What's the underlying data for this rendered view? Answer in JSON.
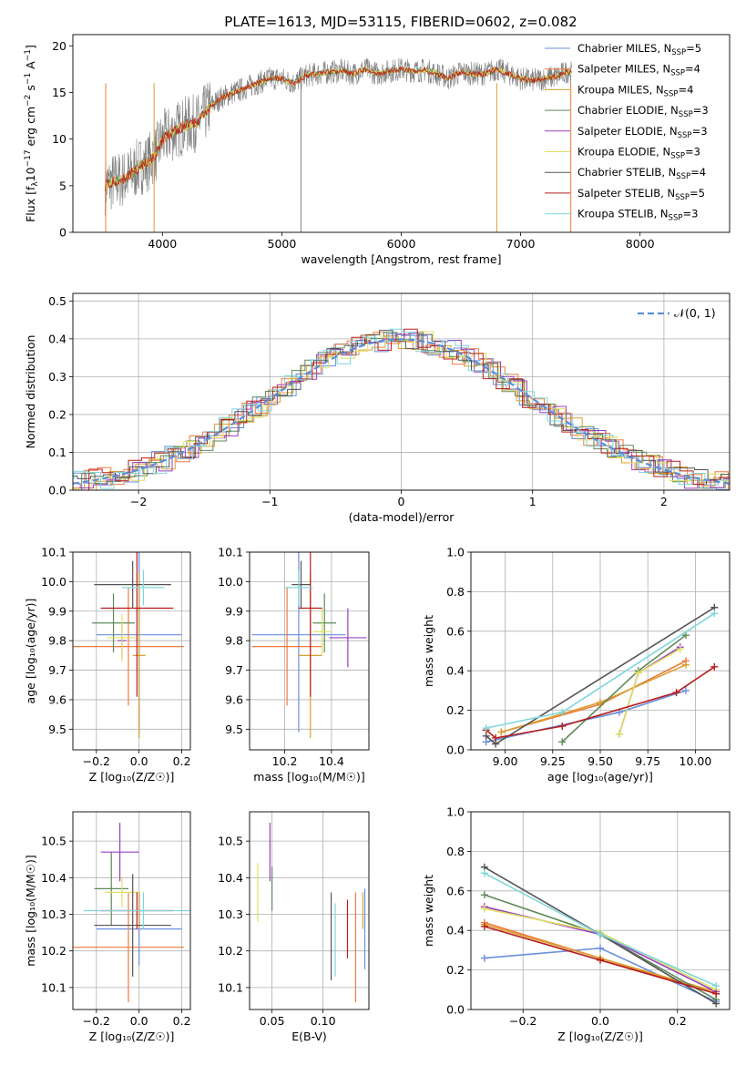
{
  "title": "PLATE=1613, MJD=53115, FIBERID=0602, z=0.082",
  "colors": {
    "chabrier_miles": "#6a8fdc",
    "salpeter_miles": "#f07a3c",
    "kroupa_miles": "#d8a030",
    "chabrier_elodie": "#5e8a5a",
    "salpeter_elodie": "#9a3fc0",
    "kroupa_elodie": "#e0e060",
    "chabrier_stelib": "#555555",
    "salpeter_stelib": "#b81c1c",
    "kroupa_stelib": "#7fd6dc",
    "data": "#808080",
    "normal": "#5a8fd8",
    "grid": "#b0b0b0"
  },
  "chart_data": [
    {
      "type": "line",
      "panel": "spectrum",
      "xlabel": "wavelength [Angstrom, rest frame]",
      "ylabel_main": "Flux [f",
      "ylabel_sub": "λ",
      "ylabel_rest": "10",
      "ylabel_exp": "−17",
      "ylabel_units": " erg cm",
      "ylabel_exp2": "−2",
      "ylabel_s": " s",
      "ylabel_exp3": "−1",
      "ylabel_A": " A",
      "ylabel_exp4": "−1",
      "ylabel_close": "]",
      "xlim": [
        3250,
        8750
      ],
      "ylim": [
        0,
        21.2
      ],
      "xticks": [
        "4000",
        "5000",
        "6000",
        "7000",
        "8000"
      ],
      "xtick_values": [
        4000,
        5000,
        6000,
        7000,
        8000
      ],
      "yticks": [
        "0",
        "5",
        "10",
        "15",
        "20"
      ],
      "ytick_values": [
        0,
        5,
        10,
        15,
        20
      ],
      "spectrum_x": [
        3520,
        3600,
        3700,
        3800,
        3880,
        3950,
        4000,
        4100,
        4200,
        4300,
        4400,
        4500,
        4600,
        4700,
        4800,
        4900,
        5000,
        5100,
        5200,
        5300,
        5400,
        5500,
        5600,
        5700,
        5800,
        5900,
        6000,
        6100,
        6200,
        6300,
        6400,
        6500,
        6600,
        6700,
        6800,
        6900,
        7000,
        7100,
        7200,
        7300,
        7400,
        7500
      ],
      "spectrum_y": [
        5.0,
        5.5,
        5.8,
        7.0,
        7.5,
        8.5,
        10.0,
        10.8,
        11.5,
        11.8,
        13.5,
        14.5,
        15.0,
        15.5,
        16.0,
        16.5,
        16.5,
        16.0,
        16.8,
        17.0,
        17.2,
        17.3,
        17.0,
        17.5,
        17.0,
        17.3,
        17.5,
        17.3,
        17.4,
        17.0,
        16.5,
        17.2,
        17.0,
        17.0,
        17.5,
        17.0,
        16.5,
        16.3,
        16.5,
        16.7,
        17.3,
        16.5
      ],
      "legend_location": "upper right",
      "legend": [
        {
          "key": "chabrier_miles",
          "label": "Chabrier MILES, N",
          "sub": "SSP",
          "value": "=5"
        },
        {
          "key": "salpeter_miles",
          "label": "Salpeter MILES, N",
          "sub": "SSP",
          "value": "=4"
        },
        {
          "key": "kroupa_miles",
          "label": "Kroupa MILES, N",
          "sub": "SSP",
          "value": "=4"
        },
        {
          "key": "chabrier_elodie",
          "label": "Chabrier ELODIE, N",
          "sub": "SSP",
          "value": "=3"
        },
        {
          "key": "salpeter_elodie",
          "label": "Salpeter ELODIE, N",
          "sub": "SSP",
          "value": "=3"
        },
        {
          "key": "kroupa_elodie",
          "label": "Kroupa ELODIE, N",
          "sub": "SSP",
          "value": "=3"
        },
        {
          "key": "chabrier_stelib",
          "label": "Chabrier STELIB, N",
          "sub": "SSP",
          "value": "=4"
        },
        {
          "key": "salpeter_stelib",
          "label": "Salpeter STELIB, N",
          "sub": "SSP",
          "value": "=5"
        },
        {
          "key": "kroupa_stelib",
          "label": "Kroupa STELIB, N",
          "sub": "SSP",
          "value": "=3"
        }
      ]
    },
    {
      "type": "line",
      "panel": "residuals",
      "xlabel": "(data-model)/error",
      "ylabel": "Normed distribution",
      "xlim": [
        -2.5,
        2.5
      ],
      "ylim": [
        0,
        0.52
      ],
      "xticks": [
        "−2",
        "−1",
        "0",
        "1",
        "2"
      ],
      "xtick_values": [
        -2,
        -1,
        0,
        1,
        2
      ],
      "yticks": [
        "0.0",
        "0.1",
        "0.2",
        "0.3",
        "0.4",
        "0.5"
      ],
      "ytick_values": [
        0,
        0.1,
        0.2,
        0.3,
        0.4,
        0.5
      ],
      "normal_label": "𝒩(0, 1)",
      "legend_location": "upper right"
    },
    {
      "type": "scatter",
      "panel": "age_vs_Z",
      "xlabel": "Z [log₁₀(Z/Z☉)]",
      "ylabel": "age  [log₁₀(age/yr)]",
      "xlim": [
        -0.31,
        0.24
      ],
      "ylim": [
        9.43,
        10.1
      ],
      "xticks": [
        "−0.2",
        "0.0",
        "0.2"
      ],
      "xtick_values": [
        -0.2,
        0.0,
        0.2
      ],
      "yticks": [
        "9.5",
        "9.6",
        "9.7",
        "9.8",
        "9.9",
        "10.0",
        "10.1"
      ],
      "ytick_values": [
        9.5,
        9.6,
        9.7,
        9.8,
        9.9,
        10.0,
        10.1
      ],
      "points": [
        {
          "key": "chabrier_miles",
          "x": 0.0,
          "xerr": 0.2,
          "y": 9.82,
          "yerr": 0.33
        },
        {
          "key": "salpeter_miles",
          "x": -0.05,
          "xerr": 0.26,
          "y": 9.78,
          "yerr": 0.2
        },
        {
          "key": "kroupa_miles",
          "x": 0.0,
          "xerr": 0.03,
          "y": 9.75,
          "yerr": 0.28
        },
        {
          "key": "chabrier_elodie",
          "x": -0.12,
          "xerr": 0.1,
          "y": 9.86,
          "yerr": 0.1
        },
        {
          "key": "salpeter_elodie",
          "x": -0.08,
          "xerr": 0.02,
          "y": 9.8,
          "yerr": 0.06
        },
        {
          "key": "kroupa_elodie",
          "x": -0.08,
          "xerr": 0.07,
          "y": 9.81,
          "yerr": 0.08
        },
        {
          "key": "chabrier_stelib",
          "x": -0.03,
          "xerr": 0.18,
          "y": 9.99,
          "yerr": 0.08
        },
        {
          "key": "salpeter_stelib",
          "x": -0.01,
          "xerr": 0.17,
          "y": 9.91,
          "yerr": 0.3
        },
        {
          "key": "kroupa_stelib",
          "x": 0.02,
          "xerr": 0.1,
          "y": 9.98,
          "yerr": 0.06
        }
      ]
    },
    {
      "type": "scatter",
      "panel": "age_vs_mass",
      "xlabel": "mass [log₁₀(M/M☉)]",
      "ylabel": "",
      "xlim": [
        10.05,
        10.56
      ],
      "ylim": [
        9.43,
        10.1
      ],
      "xticks": [
        "10.2",
        "10.4"
      ],
      "xtick_values": [
        10.2,
        10.4
      ],
      "yticks": [
        "9.5",
        "9.6",
        "9.7",
        "9.8",
        "9.9",
        "10.0",
        "10.1"
      ],
      "ytick_values": [
        9.5,
        9.6,
        9.7,
        9.8,
        9.9,
        10.0,
        10.1
      ],
      "points": [
        {
          "key": "chabrier_miles",
          "x": 10.26,
          "xerr": 0.2,
          "y": 9.82,
          "yerr": 0.33
        },
        {
          "key": "salpeter_miles",
          "x": 10.21,
          "xerr": 0.15,
          "y": 9.78,
          "yerr": 0.2
        },
        {
          "key": "kroupa_miles",
          "x": 10.31,
          "xerr": 0.05,
          "y": 9.75,
          "yerr": 0.28
        },
        {
          "key": "chabrier_elodie",
          "x": 10.37,
          "xerr": 0.05,
          "y": 9.86,
          "yerr": 0.1
        },
        {
          "key": "salpeter_elodie",
          "x": 10.47,
          "xerr": 0.08,
          "y": 9.81,
          "yerr": 0.1
        },
        {
          "key": "kroupa_elodie",
          "x": 10.36,
          "xerr": 0.04,
          "y": 9.83,
          "yerr": 0.08
        },
        {
          "key": "chabrier_stelib",
          "x": 10.27,
          "xerr": 0.04,
          "y": 9.99,
          "yerr": 0.08
        },
        {
          "key": "salpeter_stelib",
          "x": 10.31,
          "xerr": 0.05,
          "y": 9.91,
          "yerr": 0.3
        },
        {
          "key": "kroupa_stelib",
          "x": 10.26,
          "xerr": 0.06,
          "y": 9.98,
          "yerr": 0.06
        }
      ]
    },
    {
      "type": "line",
      "panel": "mass_weight_vs_age",
      "xlabel": "age  [log₁₀(age/yr)]",
      "ylabel": "mass weight",
      "xlim": [
        8.82,
        10.18
      ],
      "ylim": [
        0,
        1.0
      ],
      "xticks": [
        "9.00",
        "9.25",
        "9.50",
        "9.75",
        "10.00"
      ],
      "xtick_values": [
        9.0,
        9.25,
        9.5,
        9.75,
        10.0
      ],
      "yticks": [
        "0.0",
        "0.2",
        "0.4",
        "0.6",
        "0.8",
        "1.0"
      ],
      "ytick_values": [
        0,
        0.2,
        0.4,
        0.6,
        0.8,
        1.0
      ],
      "series": [
        {
          "key": "chabrier_miles",
          "x": [
            8.9,
            9.6,
            9.95
          ],
          "y": [
            0.04,
            0.19,
            0.3
          ]
        },
        {
          "key": "salpeter_miles",
          "x": [
            8.98,
            9.5,
            9.95
          ],
          "y": [
            0.09,
            0.23,
            0.45
          ]
        },
        {
          "key": "kroupa_miles",
          "x": [
            8.98,
            9.5,
            9.95
          ],
          "y": [
            0.09,
            0.24,
            0.43
          ]
        },
        {
          "key": "chabrier_elodie",
          "x": [
            9.3,
            9.7,
            9.95
          ],
          "y": [
            0.04,
            0.4,
            0.58
          ]
        },
        {
          "key": "salpeter_elodie",
          "x": [
            9.6,
            9.7,
            9.92
          ],
          "y": [
            0.08,
            0.39,
            0.52
          ]
        },
        {
          "key": "kroupa_elodie",
          "x": [
            9.6,
            9.7,
            9.92
          ],
          "y": [
            0.08,
            0.39,
            0.51
          ]
        },
        {
          "key": "chabrier_stelib",
          "x": [
            8.9,
            8.95,
            10.1
          ],
          "y": [
            0.07,
            0.03,
            0.72
          ]
        },
        {
          "key": "salpeter_stelib",
          "x": [
            8.9,
            8.95,
            9.3,
            9.9,
            10.1
          ],
          "y": [
            0.1,
            0.06,
            0.12,
            0.29,
            0.42
          ]
        },
        {
          "key": "kroupa_stelib",
          "x": [
            8.9,
            9.3,
            10.1
          ],
          "y": [
            0.11,
            0.19,
            0.69
          ]
        }
      ]
    },
    {
      "type": "scatter",
      "panel": "mass_vs_Z",
      "xlabel": "Z [log₁₀(Z/Z☉)]",
      "ylabel": "mass [log₁₀(M/M☉)]",
      "xlim": [
        -0.31,
        0.24
      ],
      "ylim": [
        10.04,
        10.58
      ],
      "xticks": [
        "−0.2",
        "0.0",
        "0.2"
      ],
      "xtick_values": [
        -0.2,
        0.0,
        0.2
      ],
      "yticks": [
        "10.1",
        "10.2",
        "10.3",
        "10.4",
        "10.5"
      ],
      "ytick_values": [
        10.1,
        10.2,
        10.3,
        10.4,
        10.5
      ],
      "points": [
        {
          "key": "chabrier_miles",
          "x": 0.0,
          "xerr": 0.2,
          "y": 10.26,
          "yerr": 0.1
        },
        {
          "key": "salpeter_miles",
          "x": -0.05,
          "xerr": 0.26,
          "y": 10.21,
          "yerr": 0.15
        },
        {
          "key": "kroupa_miles",
          "x": 0.0,
          "xerr": 0.02,
          "y": 10.31,
          "yerr": 0.05
        },
        {
          "key": "chabrier_elodie",
          "x": -0.13,
          "xerr": 0.08,
          "y": 10.37,
          "yerr": 0.1
        },
        {
          "key": "salpeter_elodie",
          "x": -0.09,
          "xerr": 0.09,
          "y": 10.47,
          "yerr": 0.08
        },
        {
          "key": "kroupa_elodie",
          "x": -0.08,
          "xerr": 0.08,
          "y": 10.36,
          "yerr": 0.04
        },
        {
          "key": "chabrier_stelib",
          "x": -0.03,
          "xerr": 0.18,
          "y": 10.27,
          "yerr": 0.14
        },
        {
          "key": "salpeter_stelib",
          "x": -0.01,
          "xerr": 0.17,
          "y": 10.31,
          "yerr": 0.05
        },
        {
          "key": "kroupa_stelib",
          "x": 0.02,
          "xerr": 0.28,
          "y": 10.31,
          "yerr": 0.05
        }
      ]
    },
    {
      "type": "scatter",
      "panel": "mass_vs_ebv",
      "xlabel": "E(B-V)",
      "ylabel": "",
      "xlim": [
        0.028,
        0.145
      ],
      "ylim": [
        10.04,
        10.58
      ],
      "xticks": [
        "0.05",
        "0.10"
      ],
      "xtick_values": [
        0.05,
        0.1
      ],
      "yticks": [
        "10.1",
        "10.2",
        "10.3",
        "10.4",
        "10.5"
      ],
      "ytick_values": [
        10.1,
        10.2,
        10.3,
        10.4,
        10.5
      ],
      "points": [
        {
          "key": "chabrier_miles",
          "x": 0.141,
          "y": 10.26,
          "yerr": 0.11
        },
        {
          "key": "salpeter_miles",
          "x": 0.132,
          "y": 10.21,
          "yerr": 0.15
        },
        {
          "key": "kroupa_miles",
          "x": 0.139,
          "y": 10.31,
          "yerr": 0.05
        },
        {
          "key": "chabrier_elodie",
          "x": 0.05,
          "y": 10.37,
          "yerr": 0.06
        },
        {
          "key": "salpeter_elodie",
          "x": 0.048,
          "y": 10.47,
          "yerr": 0.08
        },
        {
          "key": "kroupa_elodie",
          "x": 0.036,
          "y": 10.36,
          "yerr": 0.08
        },
        {
          "key": "chabrier_stelib",
          "x": 0.108,
          "y": 10.24,
          "yerr": 0.12
        },
        {
          "key": "salpeter_stelib",
          "x": 0.124,
          "y": 10.26,
          "yerr": 0.08
        },
        {
          "key": "kroupa_stelib",
          "x": 0.112,
          "y": 10.23,
          "yerr": 0.1
        }
      ]
    },
    {
      "type": "line",
      "panel": "mass_weight_vs_Z",
      "xlabel": "Z [log₁₀(Z/Z☉)]",
      "ylabel": "mass weight",
      "xlim": [
        -0.335,
        0.335
      ],
      "ylim": [
        0,
        1.0
      ],
      "xticks": [
        "−0.2",
        "0.0",
        "0.2"
      ],
      "xtick_values": [
        -0.2,
        0.0,
        0.2
      ],
      "yticks": [
        "0.0",
        "0.2",
        "0.4",
        "0.6",
        "0.8",
        "1.0"
      ],
      "ytick_values": [
        0,
        0.2,
        0.4,
        0.6,
        0.8,
        1.0
      ],
      "series": [
        {
          "key": "chabrier_miles",
          "x": [
            -0.3,
            0.0,
            0.3
          ],
          "y": [
            0.26,
            0.31,
            0.04
          ]
        },
        {
          "key": "salpeter_miles",
          "x": [
            -0.3,
            0.0,
            0.3
          ],
          "y": [
            0.44,
            0.26,
            0.08
          ]
        },
        {
          "key": "kroupa_miles",
          "x": [
            -0.3,
            0.0,
            0.3
          ],
          "y": [
            0.43,
            0.26,
            0.09
          ]
        },
        {
          "key": "chabrier_elodie",
          "x": [
            -0.3,
            0.0,
            0.3
          ],
          "y": [
            0.58,
            0.38,
            0.05
          ]
        },
        {
          "key": "salpeter_elodie",
          "x": [
            -0.3,
            0.0,
            0.3
          ],
          "y": [
            0.52,
            0.38,
            0.09
          ]
        },
        {
          "key": "kroupa_elodie",
          "x": [
            -0.3,
            0.0,
            0.3
          ],
          "y": [
            0.51,
            0.39,
            0.1
          ]
        },
        {
          "key": "chabrier_stelib",
          "x": [
            -0.3,
            0.0,
            0.3
          ],
          "y": [
            0.72,
            0.38,
            0.03
          ]
        },
        {
          "key": "salpeter_stelib",
          "x": [
            -0.3,
            0.0,
            0.3
          ],
          "y": [
            0.42,
            0.25,
            0.08
          ]
        },
        {
          "key": "kroupa_stelib",
          "x": [
            -0.3,
            0.0,
            0.3
          ],
          "y": [
            0.69,
            0.38,
            0.12
          ]
        }
      ]
    }
  ]
}
